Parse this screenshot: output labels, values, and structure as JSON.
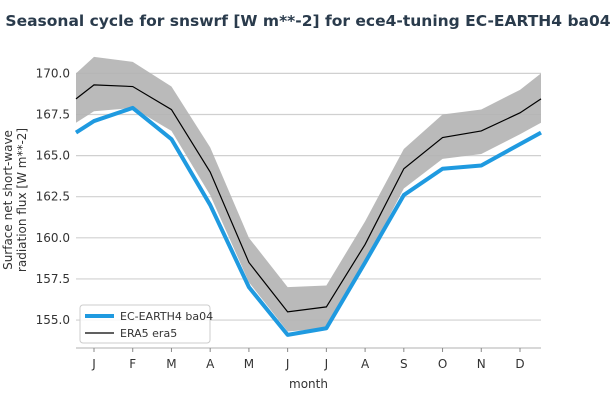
{
  "chart_data": {
    "type": "line",
    "title": "Seasonal cycle for snswrf [W m**-2] for ece4-tuning EC-EARTH4 ba04",
    "xlabel": "month",
    "ylabel": "Surface net short-wave radiation flux [W m**-2]",
    "ylabel_lines": [
      "Surface net short-wave",
      "radiation flux [W m**-2]"
    ],
    "categories": [
      "J",
      "F",
      "M",
      "A",
      "M",
      "J",
      "J",
      "A",
      "S",
      "O",
      "N",
      "D"
    ],
    "yticks": [
      "155.0",
      "157.5",
      "160.0",
      "162.5",
      "165.0",
      "167.5",
      "170.0"
    ],
    "ytick_values": [
      155,
      157.5,
      160,
      162.5,
      165,
      167.5,
      170
    ],
    "ylim": [
      153.3,
      171.3
    ],
    "grid": "horizontal",
    "legend_position": "lower-left",
    "series": [
      {
        "name": "EC-EARTH4 ba04",
        "color": "#1f9ae0",
        "values": [
          167.1,
          167.9,
          166.0,
          162.0,
          157.0,
          154.1,
          154.5,
          158.5,
          162.6,
          164.2,
          164.4,
          165.7
        ]
      },
      {
        "name": "ERA5 era5",
        "color": "#000000",
        "values": [
          169.3,
          169.2,
          167.8,
          164.0,
          158.5,
          155.5,
          155.8,
          159.6,
          164.2,
          166.1,
          166.5,
          167.6
        ],
        "band_upper": [
          171.0,
          170.7,
          169.2,
          165.5,
          160.0,
          157.0,
          157.1,
          161.0,
          165.4,
          167.5,
          167.8,
          169.0
        ],
        "band_lower": [
          167.7,
          167.9,
          166.5,
          162.6,
          157.3,
          154.3,
          154.5,
          158.5,
          163.0,
          164.8,
          165.1,
          166.3
        ],
        "band_color": "#b3b3b3"
      }
    ]
  }
}
